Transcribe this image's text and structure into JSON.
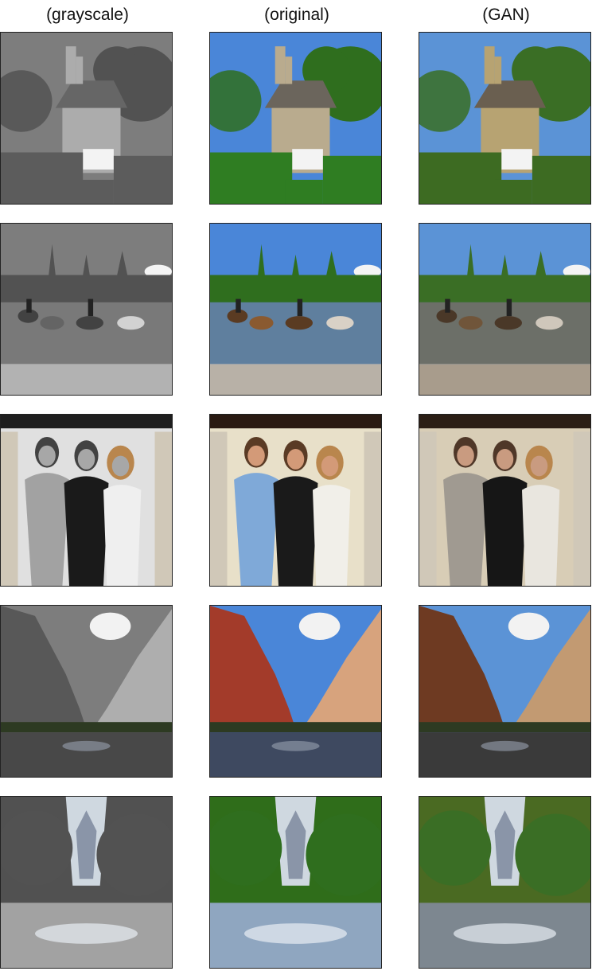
{
  "headers": {
    "grayscale": "(grayscale)",
    "original": "(original)",
    "gan": "(GAN)"
  },
  "columns": [
    "grayscale",
    "original",
    "gan"
  ],
  "rows": [
    "cottage",
    "horses-river",
    "three-women",
    "canyon-river",
    "forest-stream"
  ],
  "palettes": {
    "original": {
      "sky": "#4a86d8",
      "tree": "#2f6e1e",
      "hedge": "#2f7d22",
      "house": "#b9ab8e",
      "roof": "#6b655c",
      "water": "#5f7f9e",
      "rock": "#b8b1a7",
      "horse1": "#5a3b22",
      "horse2": "#8a5a30",
      "horse3": "#d9d1c6",
      "wall": "#e8e0c9",
      "ceiling": "#2a1a12",
      "dress1": "#7fa9d8",
      "dress2": "#1a1a1a",
      "dress3": "#f1efe9",
      "skin": "#d39a78",
      "hair": "#5a3b25",
      "cliffL": "#a33b2a",
      "cliffR": "#d7a37d",
      "river": "#3e4960",
      "forest": "#2f6d1a",
      "stream": "#8fa6c0"
    },
    "gan": {
      "sky": "#5b93d6",
      "tree": "#3a6e25",
      "hedge": "#3d6b22",
      "house": "#b7a372",
      "roof": "#6a5f50",
      "water": "#6c6f68",
      "rock": "#a89c8c",
      "horse1": "#4a3828",
      "horse2": "#70553a",
      "horse3": "#cfc7bb",
      "wall": "#d8cdb6",
      "ceiling": "#2b1e15",
      "dress1": "#a09a91",
      "dress2": "#161616",
      "dress3": "#e9e6df",
      "skin": "#c99b80",
      "hair": "#4f3728",
      "cliffL": "#6e3a22",
      "cliffR": "#c29a72",
      "river": "#3a3a3a",
      "forest": "#4a6a22",
      "stream": "#7d8790"
    }
  }
}
